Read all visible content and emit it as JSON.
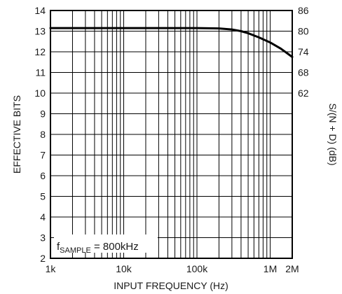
{
  "chart_data": {
    "type": "line",
    "xlabel": "INPUT FREQUENCY (Hz)",
    "ylabel": "EFFECTIVE BITS",
    "ylabel_right": "S/(N + D) (dB)",
    "x_scale": "log",
    "xlim": [
      1000,
      2000000
    ],
    "ylim": [
      2,
      14
    ],
    "x_ticks": [
      {
        "value": 1000,
        "label": "1k"
      },
      {
        "value": 10000,
        "label": "10k"
      },
      {
        "value": 100000,
        "label": "100k"
      },
      {
        "value": 1000000,
        "label": "1M"
      },
      {
        "value": 2000000,
        "label": "2M"
      }
    ],
    "y_ticks": [
      {
        "value": 2,
        "label": "2"
      },
      {
        "value": 3,
        "label": "3"
      },
      {
        "value": 4,
        "label": "4"
      },
      {
        "value": 5,
        "label": "5"
      },
      {
        "value": 6,
        "label": "6"
      },
      {
        "value": 7,
        "label": "7"
      },
      {
        "value": 8,
        "label": "8"
      },
      {
        "value": 9,
        "label": "9"
      },
      {
        "value": 10,
        "label": "10"
      },
      {
        "value": 11,
        "label": "11"
      },
      {
        "value": 12,
        "label": "12"
      },
      {
        "value": 13,
        "label": "13"
      },
      {
        "value": 14,
        "label": "14"
      }
    ],
    "y_right_ticks": [
      {
        "value": 86,
        "label": "86"
      },
      {
        "value": 80,
        "label": "80"
      },
      {
        "value": 74,
        "label": "74"
      },
      {
        "value": 68,
        "label": "68"
      },
      {
        "value": 62,
        "label": "62"
      }
    ],
    "y_right_scale": "ENOB = (dB - 1.76) / 6.02",
    "grid": true,
    "annotation": {
      "prefix": "f",
      "subscript": "SAMPLE",
      "suffix": " = 800kHz"
    },
    "series": [
      {
        "x": [
          1000,
          10000,
          100000,
          200000,
          300000,
          400000,
          500000,
          700000,
          1000000,
          1400000,
          2000000
        ],
        "y": [
          13.15,
          13.15,
          13.15,
          13.13,
          13.08,
          13.0,
          12.9,
          12.7,
          12.45,
          12.15,
          11.75
        ]
      }
    ]
  }
}
